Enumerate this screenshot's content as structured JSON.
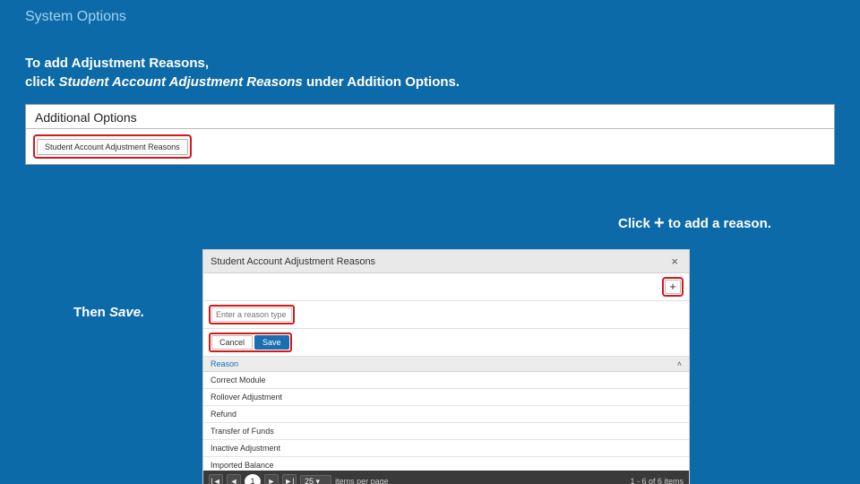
{
  "slide": {
    "title": "System Options",
    "intro_line1": "To add Adjustment Reasons,",
    "intro_line2_prefix": "click ",
    "intro_line2_italic": "Student Account Adjustment Reasons ",
    "intro_line2_suffix": "under Addition Options.",
    "click_plus_prefix": "Click ",
    "click_plus_symbol": "+",
    "click_plus_suffix": " to add a reason.",
    "then_save_prefix": "Then ",
    "then_save_italic": "Save."
  },
  "panel1": {
    "title": "Additional Options",
    "button_label": "Student Account Adjustment Reasons"
  },
  "dialog": {
    "title": "Student Account Adjustment Reasons",
    "close_symbol": "×",
    "plus_symbol": "+",
    "input_placeholder": "Enter a reason type",
    "cancel_label": "Cancel",
    "save_label": "Save",
    "list_header": "Reason",
    "rows": [
      "Correct Module",
      "Rollover Adjustment",
      "Refund",
      "Transfer of Funds",
      "Inactive Adjustment",
      "Imported Balance"
    ],
    "nav": {
      "first": "|◄",
      "prev": "◄",
      "page": "1",
      "next": "►",
      "last": "►|"
    },
    "per_page_value": "25",
    "per_page_caret": "▾",
    "per_page_label": "items per page",
    "count_text": "1 - 6 of 6 items"
  },
  "colors": {
    "background": "#0d6aa8",
    "title_text": "#9fd4f0",
    "highlight_border": "#d11a1a",
    "save_button": "#1a6fb0",
    "footer_bg": "#3a3a3a"
  }
}
